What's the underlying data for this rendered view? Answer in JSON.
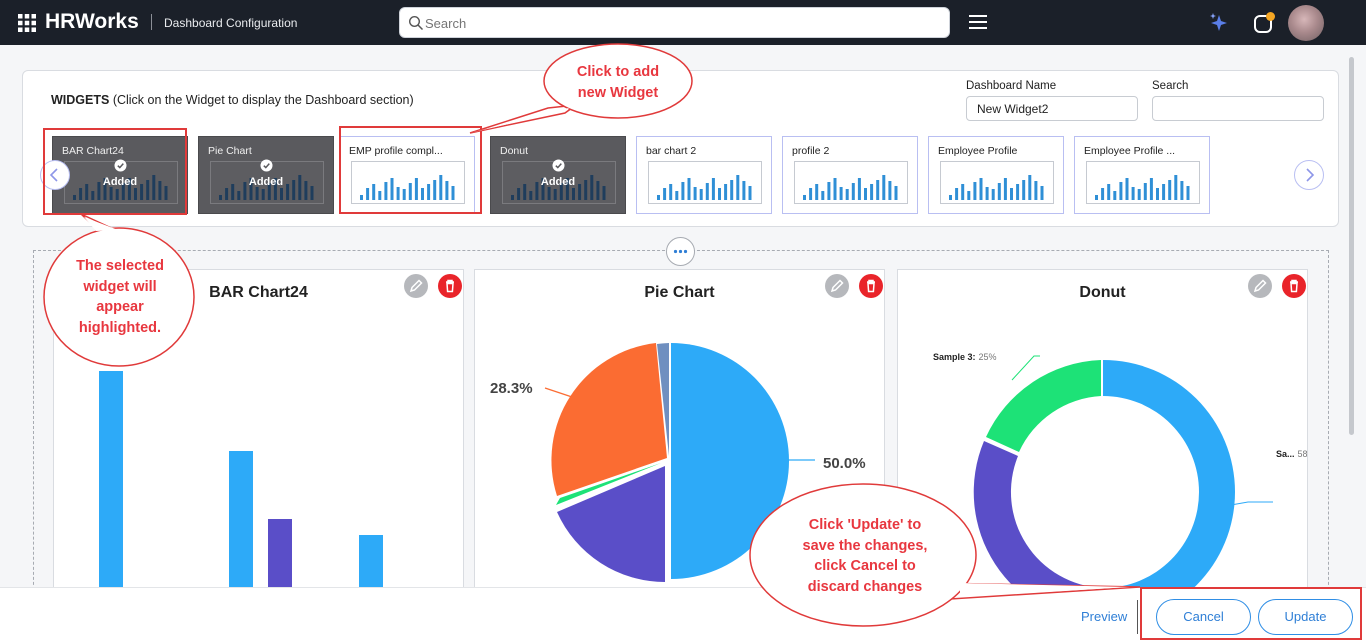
{
  "header": {
    "brand": "HRWorks",
    "page_name": "Dashboard Configuration",
    "search_placeholder": "Search",
    "icons": [
      "app-grid-icon",
      "search-icon",
      "menu-icon",
      "ai-sparkle-icon",
      "notification-icon",
      "avatar"
    ]
  },
  "widgets_panel": {
    "title_bold": "WIDGETS",
    "title_rest": " (Click on the Widget to display the Dashboard section)",
    "dashboard_name_label": "Dashboard Name",
    "dashboard_name_value": "New Widget2",
    "search_label": "Search",
    "search_value": "",
    "cards": [
      {
        "name": "BAR Chart24",
        "added": true
      },
      {
        "name": "Pie Chart",
        "added": true
      },
      {
        "name": "EMP profile compl...",
        "added": false
      },
      {
        "name": "Donut",
        "added": true
      },
      {
        "name": "bar chart 2",
        "added": false
      },
      {
        "name": "profile 2",
        "added": false
      },
      {
        "name": "Employee Profile",
        "added": false
      },
      {
        "name": "Employee Profile ...",
        "added": false
      }
    ],
    "added_label": "Added"
  },
  "dashboard": {
    "bar_card": {
      "title": "BAR Chart24"
    },
    "pie_card": {
      "title": "Pie Chart",
      "label_large": "50.0%",
      "label_small": "28.3%"
    },
    "donut_card": {
      "title": "Donut",
      "label_left_name": "Sample 3:",
      "label_left_value": "25%",
      "label_right_name": "Sa...",
      "label_right_value": "58"
    }
  },
  "footer": {
    "preview": "Preview",
    "cancel": "Cancel",
    "update": "Update"
  },
  "annotations": {
    "add_widget": [
      "Click to add",
      "new Widget"
    ],
    "selected": [
      "The selected",
      "widget will",
      "appear",
      "highlighted."
    ],
    "update": [
      "Click 'Update' to",
      "save the changes,",
      "click Cancel to",
      "discard changes"
    ]
  },
  "colors": {
    "topbar": "#1b2029",
    "accent_blue": "#2daaf8",
    "purple": "#5a4ec8",
    "orange": "#fb6c32",
    "green": "#1de277",
    "slate": "#6f8fc0",
    "callout_red": "#e8373f"
  }
}
